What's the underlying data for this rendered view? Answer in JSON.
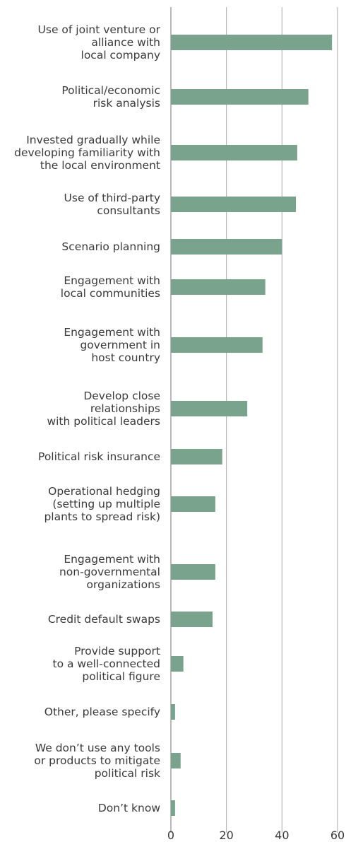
{
  "chart_data": {
    "type": "bar",
    "orientation": "horizontal",
    "categories": [
      [
        "Use of joint venture or",
        "alliance with",
        "local company"
      ],
      [
        "Political/economic",
        "risk analysis"
      ],
      [
        "Invested gradually while",
        "developing familiarity with",
        "the local environment"
      ],
      [
        "Use of third-party",
        "consultants"
      ],
      [
        "Scenario planning"
      ],
      [
        "Engagement with",
        "local communities"
      ],
      [
        "Engagement with",
        "government in",
        "host country"
      ],
      [
        "Develop close",
        "relationships",
        "with political leaders"
      ],
      [
        "Political risk insurance"
      ],
      [
        "Operational hedging",
        "(setting up multiple",
        "plants to spread risk)"
      ],
      [
        "Engagement with",
        "non-governmental",
        "organizations"
      ],
      [
        "Credit default swaps"
      ],
      [
        "Provide support",
        "to a well-connected",
        "political figure"
      ],
      [
        "Other, please specify"
      ],
      [
        "We don’t use any tools",
        "or products to mitigate",
        "political risk"
      ],
      [
        "Don’t know"
      ]
    ],
    "values": [
      58,
      49.5,
      45.5,
      45,
      40,
      34,
      33,
      27.5,
      18.5,
      16,
      16,
      15,
      4.5,
      1.5,
      3.5,
      1.5
    ],
    "xlim": [
      0,
      60
    ],
    "xticks": [
      0,
      20,
      40,
      60
    ],
    "xtick_labels": [
      "0",
      "20",
      "40",
      "60"
    ],
    "grid": true,
    "bar_color": "#7aa38d",
    "title": "",
    "xlabel": "",
    "ylabel": ""
  }
}
